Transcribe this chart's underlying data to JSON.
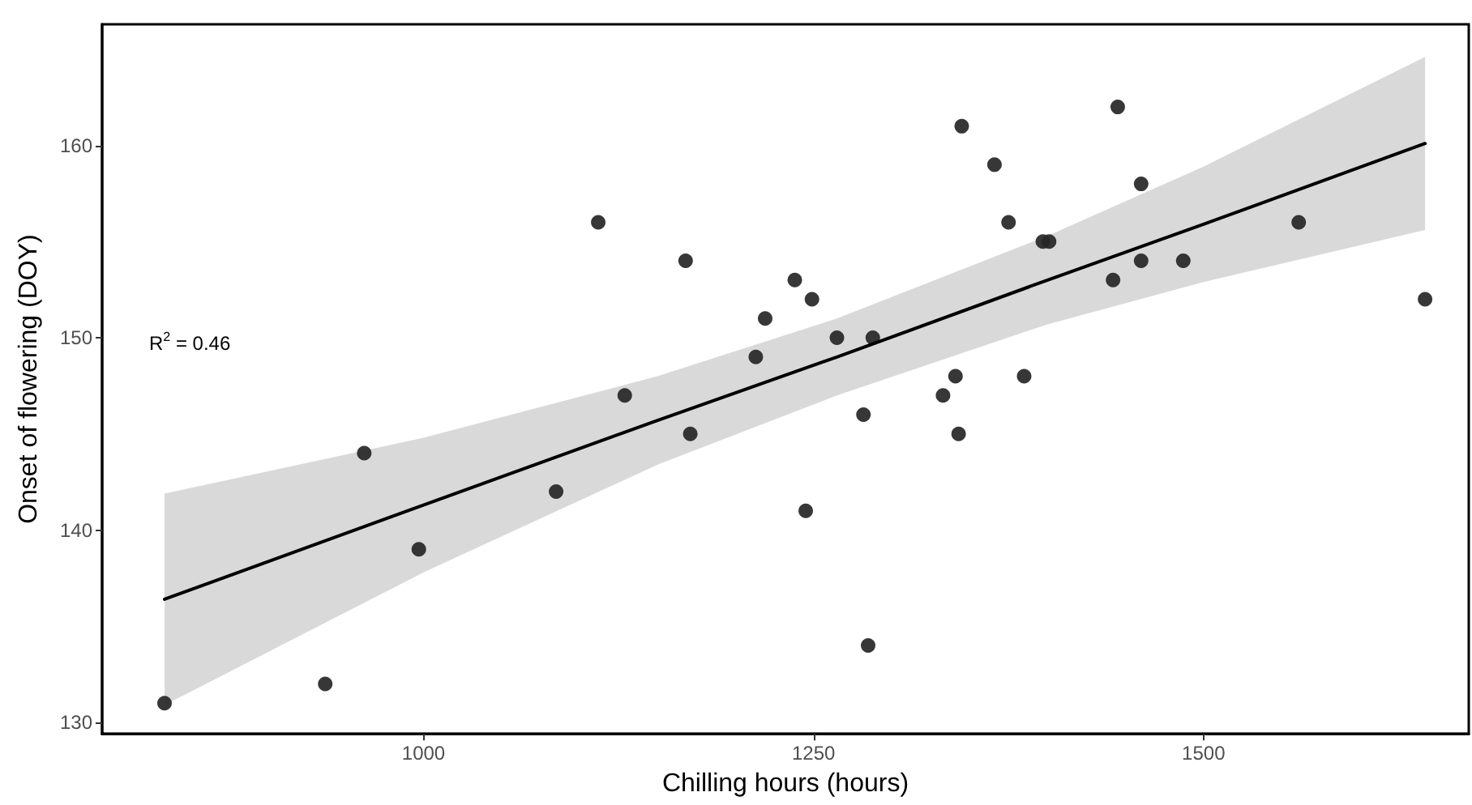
{
  "chart_data": {
    "type": "scatter",
    "xlabel": "Chilling hours (hours)",
    "ylabel": "Onset of flowering (DOY)",
    "annotations": [
      "R$^{2}$ = 0.46"
    ],
    "xlim": [
      794,
      1670
    ],
    "xticks": [
      1000,
      1250,
      1500
    ],
    "ylim": [
      129.4,
      166.3
    ],
    "yticks": [
      130,
      140,
      150,
      160
    ],
    "grid": false,
    "series": [
      {
        "marker": "circle",
        "color": "#262626",
        "x": [
          834,
          937,
          962,
          997,
          1085,
          1112,
          1129,
          1168,
          1171,
          1213,
          1219,
          1238,
          1245,
          1249,
          1265,
          1282,
          1285,
          1288,
          1333,
          1341,
          1343,
          1345,
          1366,
          1375,
          1385,
          1397,
          1401,
          1442,
          1445,
          1460,
          1460,
          1487,
          1561,
          1642
        ],
        "values": [
          131,
          132,
          144,
          139,
          142,
          156,
          147,
          154,
          145,
          149,
          151,
          153,
          141,
          152,
          150,
          146,
          134,
          150,
          147,
          148,
          145,
          161,
          159,
          156,
          148,
          155,
          155,
          153,
          162,
          158,
          154,
          154,
          156,
          152
        ]
      },
      {
        "type": "line",
        "marker": "none",
        "color": "#000000",
        "line_style": "solid",
        "x": [
          834,
          1000,
          1150,
          1265,
          1400,
          1500,
          1642
        ],
        "values": [
          136.4,
          141.3,
          145.7,
          149.0,
          153.0,
          155.9,
          160.1
        ],
        "lower": [
          130.9,
          137.8,
          143.4,
          147.0,
          150.7,
          152.9,
          155.6
        ],
        "upper": [
          141.9,
          144.8,
          148.0,
          151.0,
          155.3,
          158.9,
          164.6
        ]
      }
    ]
  }
}
